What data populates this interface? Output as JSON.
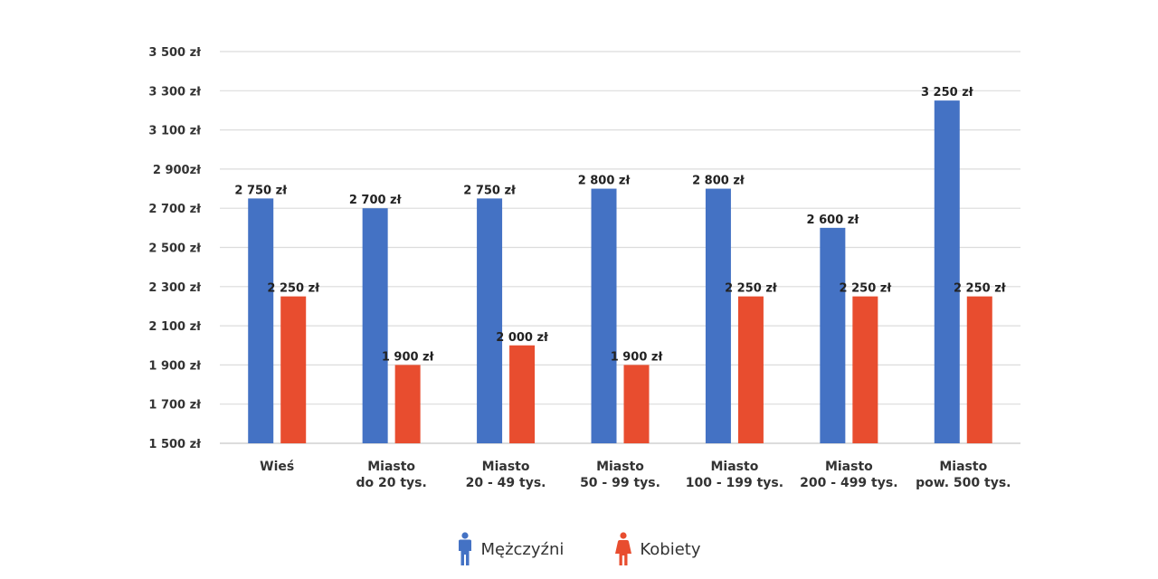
{
  "chart_data": {
    "type": "bar",
    "categories": [
      [
        "Wieś"
      ],
      [
        "Miasto",
        "do 20 tys."
      ],
      [
        "Miasto",
        "20 - 49 tys."
      ],
      [
        "Miasto",
        "50 - 99 tys."
      ],
      [
        "Miasto",
        "100 - 199 tys."
      ],
      [
        "Miasto",
        "200 - 499 tys."
      ],
      [
        "Miasto",
        "pow. 500 tys."
      ]
    ],
    "series": [
      {
        "name": "Mężczyźni",
        "color": "#4472c4",
        "icon": "male-icon",
        "values": [
          2750,
          2700,
          2750,
          2800,
          2800,
          2600,
          3250
        ],
        "labels": [
          "2 750 zł",
          "2 700 zł",
          "2 750 zł",
          "2 800 zł",
          "2 800 zł",
          "2 600 zł",
          "3 250 zł"
        ]
      },
      {
        "name": "Kobiety",
        "color": "#e84d2f",
        "icon": "female-icon",
        "values": [
          2250,
          1900,
          2000,
          1900,
          2250,
          2250,
          2250
        ],
        "labels": [
          "2 250 zł",
          "1 900 zł",
          "2 000 zł",
          "1 900 zł",
          "2 250 zł",
          "2 250 zł",
          "2 250 zł"
        ]
      }
    ],
    "yticks": [
      1500,
      1700,
      1900,
      2100,
      2300,
      2500,
      2700,
      2900,
      3100,
      3300,
      3500
    ],
    "ytick_labels": [
      "1 500 zł",
      "1 700 zł",
      "1 900 zł",
      "2 100 zł",
      "2 300 zł",
      "2 500 zł",
      "2 700 zł",
      "2 900zł",
      "3 100 zł",
      "3 300 zł",
      "3 500 zł"
    ],
    "ylim": [
      1500,
      3500
    ],
    "grid": true,
    "legend_position": "bottom"
  }
}
